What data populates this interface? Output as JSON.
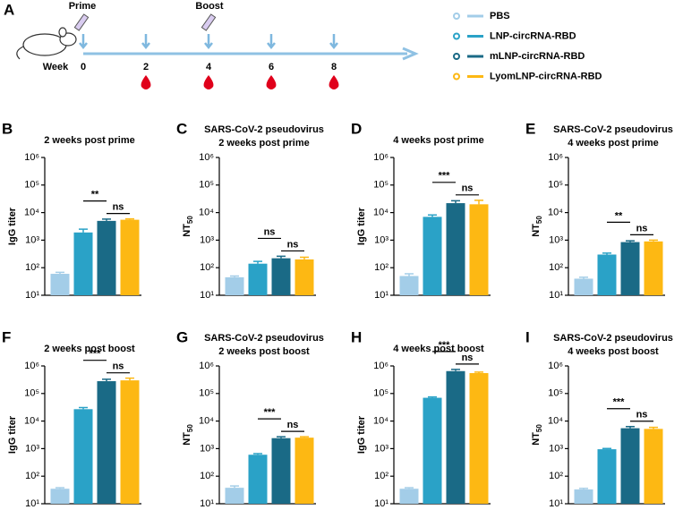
{
  "timeline": {
    "panel": "A",
    "prime_label": "Prime",
    "boost_label": "Boost",
    "week_label": "Week",
    "weeks": [
      0,
      2,
      4,
      6,
      8
    ]
  },
  "legend": {
    "entries": [
      {
        "name": "PBS",
        "color": "#a3cde8"
      },
      {
        "name": "LNP-circRNA-RBD",
        "color": "#2aa2c7"
      },
      {
        "name": "mLNP-circRNA-RBD",
        "color": "#1a6a86"
      },
      {
        "name": "LyomLNP-circRNA-RBD",
        "color": "#fdb813"
      }
    ]
  },
  "chart_data": [
    {
      "type": "bar",
      "panel": "B",
      "title": "2 weeks post prime",
      "ylabel": "IgG titer",
      "log_scale": true,
      "values": [
        60,
        1900,
        5000,
        5500
      ],
      "errors": [
        8,
        600,
        800,
        400
      ],
      "annotations": [
        "**",
        "ns"
      ],
      "ylim": [
        10,
        1000000
      ],
      "yticks": [
        {
          "value": 10,
          "label": "10¹"
        },
        {
          "value": 100,
          "label": "10²"
        },
        {
          "value": 1000,
          "label": "10³"
        },
        {
          "value": 10000,
          "label": "10⁴"
        },
        {
          "value": 100000,
          "label": "10⁵"
        },
        {
          "value": 1000000,
          "label": "10⁶"
        }
      ]
    },
    {
      "type": "bar",
      "panel": "C",
      "title": "SARS-CoV-2 pseudovirus",
      "subtitle": "2 weeks post prime",
      "ylabel": "NT",
      "ylabel_subscript": "50",
      "log_scale": true,
      "values": [
        45,
        140,
        220,
        200
      ],
      "errors": [
        5,
        30,
        40,
        40
      ],
      "annotations": [
        "ns",
        "ns"
      ],
      "ylim": [
        10,
        1000000
      ],
      "yticks": [
        {
          "value": 10,
          "label": "10¹"
        },
        {
          "value": 100,
          "label": "10²"
        },
        {
          "value": 1000,
          "label": "10³"
        },
        {
          "value": 10000,
          "label": "10⁴"
        },
        {
          "value": 100000,
          "label": "10⁵"
        },
        {
          "value": 1000000,
          "label": "10⁶"
        }
      ]
    },
    {
      "type": "bar",
      "panel": "D",
      "title": "4 weeks post prime",
      "ylabel": "IgG titer",
      "log_scale": true,
      "values": [
        50,
        7000,
        22000,
        20000
      ],
      "errors": [
        10,
        1200,
        5000,
        8000
      ],
      "annotations": [
        "***",
        "ns"
      ],
      "ylim": [
        10,
        1000000
      ],
      "yticks": [
        {
          "value": 10,
          "label": "10¹"
        },
        {
          "value": 100,
          "label": "10²"
        },
        {
          "value": 1000,
          "label": "10³"
        },
        {
          "value": 10000,
          "label": "10⁴"
        },
        {
          "value": 100000,
          "label": "10⁵"
        },
        {
          "value": 1000000,
          "label": "10⁶"
        }
      ]
    },
    {
      "type": "bar",
      "panel": "E",
      "title": "SARS-CoV-2 pseudovirus",
      "subtitle": "4 weeks post prime",
      "ylabel": "NT",
      "ylabel_subscript": "50",
      "log_scale": true,
      "values": [
        40,
        300,
        850,
        900
      ],
      "errors": [
        5,
        40,
        100,
        100
      ],
      "annotations": [
        "**",
        "ns"
      ],
      "ylim": [
        10,
        1000000
      ],
      "yticks": [
        {
          "value": 10,
          "label": "10¹"
        },
        {
          "value": 100,
          "label": "10²"
        },
        {
          "value": 1000,
          "label": "10³"
        },
        {
          "value": 10000,
          "label": "10⁴"
        },
        {
          "value": 100000,
          "label": "10⁵"
        },
        {
          "value": 1000000,
          "label": "10⁶"
        }
      ]
    },
    {
      "type": "bar",
      "panel": "F",
      "title": "2 weeks post boost",
      "ylabel": "IgG titer",
      "log_scale": true,
      "values": [
        35,
        27000,
        280000,
        300000
      ],
      "errors": [
        3,
        4000,
        50000,
        60000
      ],
      "annotations": [
        "***",
        "ns"
      ],
      "ylim": [
        10,
        1000000
      ],
      "yticks": [
        {
          "value": 10,
          "label": "10¹"
        },
        {
          "value": 100,
          "label": "10²"
        },
        {
          "value": 1000,
          "label": "10³"
        },
        {
          "value": 10000,
          "label": "10⁴"
        },
        {
          "value": 100000,
          "label": "10⁵"
        },
        {
          "value": 1000000,
          "label": "10⁶"
        }
      ]
    },
    {
      "type": "bar",
      "panel": "G",
      "title": "SARS-CoV-2 pseudovirus",
      "subtitle": "2 weeks post boost",
      "ylabel": "NT",
      "ylabel_subscript": "50",
      "log_scale": true,
      "values": [
        38,
        600,
        2400,
        2500
      ],
      "errors": [
        6,
        60,
        300,
        200
      ],
      "annotations": [
        "***",
        "ns"
      ],
      "ylim": [
        10,
        1000000
      ],
      "yticks": [
        {
          "value": 10,
          "label": "10¹"
        },
        {
          "value": 100,
          "label": "10²"
        },
        {
          "value": 1000,
          "label": "10³"
        },
        {
          "value": 10000,
          "label": "10⁴"
        },
        {
          "value": 100000,
          "label": "10⁵"
        },
        {
          "value": 1000000,
          "label": "10⁶"
        }
      ]
    },
    {
      "type": "bar",
      "panel": "H",
      "title": "4 weeks post boost",
      "ylabel": "IgG titer",
      "log_scale": true,
      "values": [
        35,
        70000,
        650000,
        550000
      ],
      "errors": [
        3,
        5000,
        100000,
        50000
      ],
      "annotations": [
        "***",
        "ns"
      ],
      "ylim": [
        10,
        1000000
      ],
      "yticks": [
        {
          "value": 10,
          "label": "10¹"
        },
        {
          "value": 100,
          "label": "10²"
        },
        {
          "value": 1000,
          "label": "10³"
        },
        {
          "value": 10000,
          "label": "10⁴"
        },
        {
          "value": 100000,
          "label": "10⁵"
        },
        {
          "value": 1000000,
          "label": "10⁶"
        }
      ]
    },
    {
      "type": "bar",
      "panel": "I",
      "title": "SARS-CoV-2 pseudovirus",
      "subtitle": "4 weeks post boost",
      "ylabel": "NT",
      "ylabel_subscript": "50",
      "log_scale": true,
      "values": [
        33,
        950,
        5500,
        5200
      ],
      "errors": [
        3,
        60,
        800,
        700
      ],
      "annotations": [
        "***",
        "ns"
      ],
      "ylim": [
        10,
        1000000
      ],
      "yticks": [
        {
          "value": 10,
          "label": "10¹"
        },
        {
          "value": 100,
          "label": "10²"
        },
        {
          "value": 1000,
          "label": "10³"
        },
        {
          "value": 10000,
          "label": "10⁴"
        },
        {
          "value": 100000,
          "label": "10⁵"
        },
        {
          "value": 1000000,
          "label": "10⁶"
        }
      ]
    }
  ]
}
